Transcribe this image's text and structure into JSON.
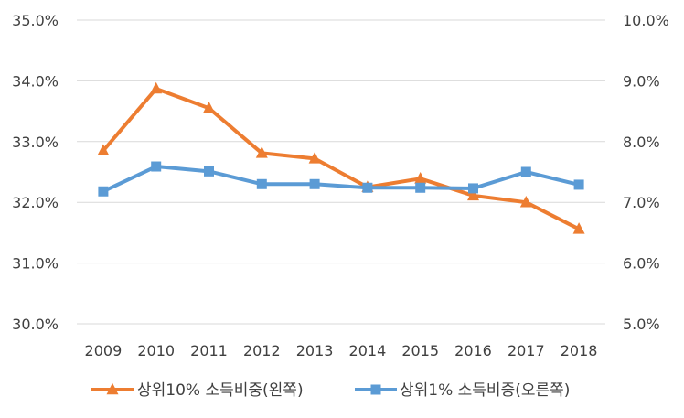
{
  "chart_data": {
    "type": "line",
    "title": "",
    "categories": [
      "2009",
      "2010",
      "2011",
      "2012",
      "2013",
      "2014",
      "2015",
      "2016",
      "2017",
      "2018"
    ],
    "y_left": {
      "ylim": [
        30.0,
        35.0
      ],
      "ticks": [
        "30.0%",
        "31.0%",
        "32.0%",
        "33.0%",
        "34.0%",
        "35.0%"
      ]
    },
    "y_right": {
      "ylim": [
        5.0,
        10.0
      ],
      "ticks": [
        "5.0%",
        "6.0%",
        "7.0%",
        "8.0%",
        "9.0%",
        "10.0%"
      ]
    },
    "grid": true,
    "series": [
      {
        "name": "상위10% 소득비중(왼쪽)",
        "axis": "left",
        "marker": "triangle",
        "color": "#ED7D31",
        "values": [
          32.85,
          33.87,
          33.55,
          32.81,
          32.72,
          32.25,
          32.39,
          32.11,
          32.0,
          31.56
        ]
      },
      {
        "name": "상위1%  소득비중(오른쪽)",
        "axis": "right",
        "marker": "square",
        "color": "#5B9BD5",
        "values": [
          7.18,
          7.59,
          7.51,
          7.3,
          7.3,
          7.24,
          7.24,
          7.23,
          7.5,
          7.29
        ]
      }
    ],
    "legend_position": "bottom"
  }
}
